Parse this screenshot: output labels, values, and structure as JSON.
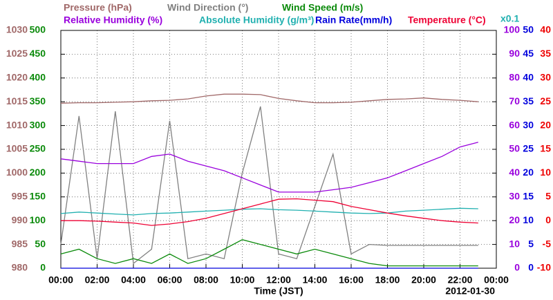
{
  "chart_data": {
    "type": "line",
    "x_label": "Time (JST)",
    "date": "2012-01-30",
    "annotation": "x0.1",
    "xlim": [
      0,
      24
    ],
    "xticks": [
      {
        "value": 0,
        "label": "00:00"
      },
      {
        "value": 2,
        "label": "02:00"
      },
      {
        "value": 4,
        "label": "04:00"
      },
      {
        "value": 6,
        "label": "06:00"
      },
      {
        "value": 8,
        "label": "08:00"
      },
      {
        "value": 10,
        "label": "10:00"
      },
      {
        "value": 12,
        "label": "12:00"
      },
      {
        "value": 14,
        "label": "14:00"
      },
      {
        "value": 16,
        "label": "16:00"
      },
      {
        "value": 18,
        "label": "18:00"
      },
      {
        "value": 20,
        "label": "20:00"
      },
      {
        "value": 22,
        "label": "22:00"
      },
      {
        "value": 24,
        "label": "00:00"
      }
    ],
    "grid": true,
    "axes": [
      {
        "side": "left",
        "color": "#a06868",
        "lim": [
          980,
          1030
        ],
        "ticks": [
          980,
          985,
          990,
          995,
          1000,
          1005,
          1010,
          1015,
          1020,
          1025,
          1030
        ]
      },
      {
        "side": "left",
        "color": "#0a8a0a",
        "lim": [
          0,
          500
        ],
        "ticks": [
          0,
          50,
          100,
          150,
          200,
          250,
          300,
          350,
          400,
          450,
          500
        ]
      },
      {
        "side": "right",
        "color": "#9900dd",
        "lim": [
          0,
          100
        ],
        "ticks": [
          0,
          10,
          20,
          30,
          40,
          50,
          60,
          70,
          80,
          90,
          100
        ]
      },
      {
        "side": "right",
        "color": "#0000dd",
        "lim": [
          0,
          50
        ],
        "ticks": [
          0,
          5,
          10,
          15,
          20,
          25,
          30,
          35,
          40,
          45,
          50
        ]
      },
      {
        "side": "right",
        "color": "#ee0000",
        "lim": [
          -10,
          40
        ],
        "ticks": [
          -10,
          -5,
          0,
          5,
          10,
          15,
          20,
          25,
          30,
          35,
          40
        ]
      }
    ],
    "x": [
      0,
      1,
      2,
      3,
      4,
      5,
      6,
      7,
      8,
      9,
      10,
      11,
      12,
      13,
      14,
      15,
      16,
      17,
      18,
      19,
      20,
      21,
      22,
      23
    ],
    "series": [
      {
        "name": "Pressure (hPa)",
        "color": "#a06868",
        "axis": 0,
        "values": [
          1014.7,
          1014.8,
          1014.8,
          1014.9,
          1015,
          1015.2,
          1015.3,
          1015.6,
          1016.2,
          1016.6,
          1016.6,
          1016.5,
          1015.7,
          1015.2,
          1014.8,
          1014.8,
          1014.9,
          1015.2,
          1015.5,
          1015.6,
          1015.8,
          1015.5,
          1015.3,
          1015.0
        ]
      },
      {
        "name": "Wind Direction (°)",
        "color": "#808080",
        "axis": 1,
        "values": [
          50,
          320,
          20,
          330,
          10,
          40,
          310,
          20,
          30,
          20,
          200,
          340,
          30,
          20,
          130,
          240,
          30,
          50,
          48,
          48,
          48,
          48,
          48,
          48
        ]
      },
      {
        "name": "Wind Speed (m/s)",
        "color": "#0a8a0a",
        "axis": 1,
        "values": [
          30,
          40,
          20,
          10,
          20,
          10,
          30,
          10,
          20,
          40,
          60,
          50,
          40,
          30,
          40,
          30,
          20,
          10,
          5,
          5,
          5,
          5,
          5,
          5
        ]
      },
      {
        "name": "Relative Humidity (%)",
        "color": "#9900dd",
        "axis": 2,
        "values": [
          46,
          45,
          44,
          44,
          44,
          47,
          48,
          45,
          43,
          41,
          38,
          35,
          32,
          32,
          32,
          33,
          34,
          36,
          38,
          41,
          44,
          47,
          51,
          53
        ]
      },
      {
        "name": "Absolute Humidity (g/m³)",
        "color": "#20b0b0",
        "axis": 3,
        "values": [
          11.5,
          11.8,
          11.6,
          11.4,
          11.2,
          11.5,
          11.6,
          11.8,
          12,
          12.2,
          12.4,
          12.5,
          12.3,
          12.2,
          12,
          11.8,
          11.6,
          11.5,
          11.6,
          12,
          12.2,
          12.4,
          12.6,
          12.5
        ]
      },
      {
        "name": "Rain Rate(mm/h)",
        "color": "#0000dd",
        "axis": 3,
        "values": [
          0,
          0,
          0,
          0,
          0,
          0,
          0,
          0,
          0,
          0,
          0,
          0,
          0,
          0,
          0,
          0,
          0,
          0,
          0,
          0,
          0,
          0,
          0,
          0
        ]
      },
      {
        "name": "Temperature (°C)",
        "color": "#ee0033",
        "axis": 4,
        "values": [
          0,
          0,
          -0.1,
          -0.3,
          -0.5,
          -1,
          -0.7,
          -0.2,
          0.5,
          1.5,
          2.5,
          3.5,
          4.5,
          4.6,
          4.3,
          4,
          3,
          2.3,
          1.6,
          1,
          0.5,
          0,
          -0.3,
          -0.5
        ]
      }
    ]
  }
}
